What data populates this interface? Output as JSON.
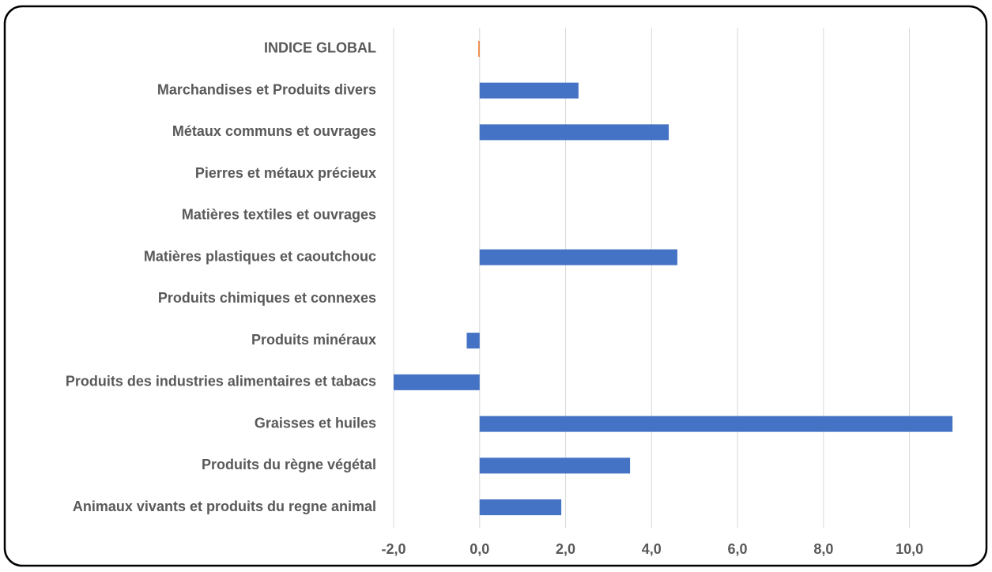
{
  "chart_data": {
    "type": "hbar",
    "categories": [
      "INDICE GLOBAL",
      "Marchandises et Produits divers",
      "Métaux communs et ouvrages",
      "Pierres et métaux précieux",
      "Matières textiles et ouvrages",
      "Matières plastiques et caoutchouc",
      "Produits chimiques et connexes",
      "Produits minéraux",
      "Produits des industries alimentaires et tabacs",
      "Graisses et huiles",
      "Produits du règne végétal",
      "Animaux vivants et produits du regne animal"
    ],
    "values": [
      -0.03,
      2.3,
      4.4,
      0,
      0,
      4.6,
      0,
      -0.3,
      -2.0,
      11.0,
      3.5,
      1.9
    ],
    "colors": [
      "#ed7d31",
      "#4472c4",
      "#4472c4",
      "#4472c4",
      "#4472c4",
      "#4472c4",
      "#4472c4",
      "#4472c4",
      "#4472c4",
      "#4472c4",
      "#4472c4",
      "#4472c4"
    ],
    "xlim": [
      -2,
      11
    ],
    "xticks": [
      {
        "value": -2,
        "label": "-2,0"
      },
      {
        "value": 0,
        "label": "0,0"
      },
      {
        "value": 2,
        "label": "2,0"
      },
      {
        "value": 4,
        "label": "4,0"
      },
      {
        "value": 6,
        "label": "6,0"
      },
      {
        "value": 8,
        "label": "8,0"
      },
      {
        "value": 10,
        "label": "10,0"
      }
    ],
    "grid": true
  }
}
